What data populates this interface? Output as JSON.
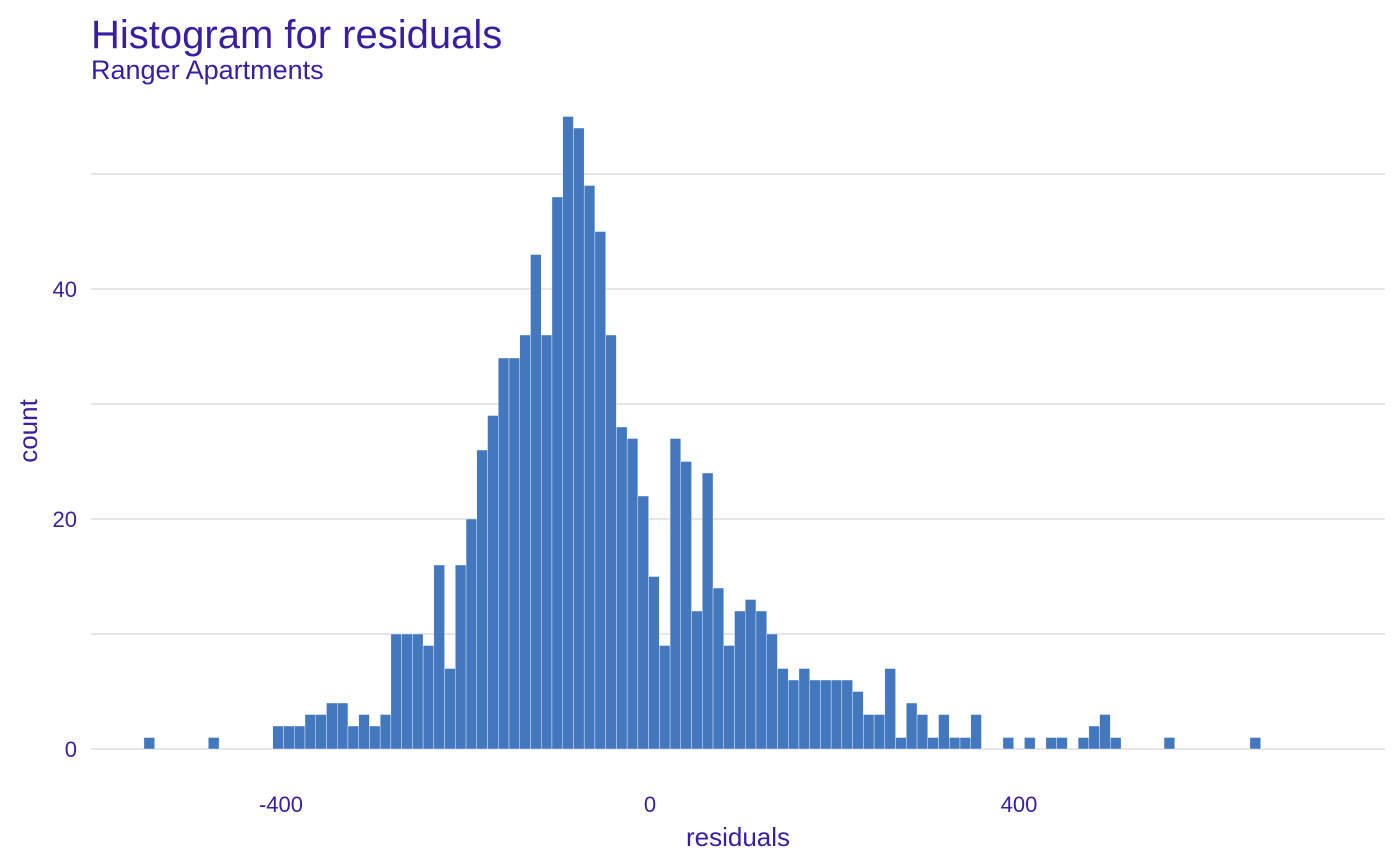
{
  "chart_data": {
    "type": "histogram",
    "title": "Histogram for residuals",
    "subtitle": "Ranger Apartments",
    "xlabel": "residuals",
    "ylabel": "count",
    "xlim": [
      -608,
      760
    ],
    "ylim": [
      0,
      56
    ],
    "x_ticks": [
      {
        "value": -400,
        "label": "-400"
      },
      {
        "value": 0,
        "label": "0"
      },
      {
        "value": 400,
        "label": "400"
      }
    ],
    "y_ticks": [
      {
        "value": 0,
        "label": "0"
      },
      {
        "value": 20,
        "label": "20"
      },
      {
        "value": 40,
        "label": "40"
      }
    ],
    "minor_y_gridlines": [
      10,
      30,
      50
    ],
    "grid": "horizontal",
    "bar_color": "#4378bf",
    "bar_edge_color": "#ffffff",
    "text_color": "#371ea3",
    "grid_color": "#e6e6e6",
    "bin_start": -548.6,
    "bin_width": 11.64,
    "counts": [
      1,
      0,
      0,
      0,
      0,
      0,
      1,
      0,
      0,
      0,
      0,
      0,
      2,
      2,
      2,
      3,
      3,
      4,
      4,
      2,
      3,
      2,
      3,
      10,
      10,
      10,
      9,
      16,
      7,
      16,
      20,
      26,
      29,
      34,
      34,
      36,
      43,
      36,
      48,
      55,
      54,
      49,
      45,
      36,
      28,
      27,
      22,
      15,
      9,
      27,
      25,
      12,
      24,
      14,
      9,
      12,
      13,
      12,
      10,
      7,
      6,
      7,
      6,
      6,
      6,
      6,
      5,
      3,
      3,
      7,
      1,
      4,
      3,
      1,
      3,
      1,
      1,
      3,
      0,
      0,
      1,
      0,
      1,
      0,
      1,
      1,
      0,
      1,
      2,
      3,
      1,
      0,
      0,
      0,
      0,
      1,
      0,
      0,
      0,
      0,
      0,
      0,
      0,
      1
    ]
  }
}
